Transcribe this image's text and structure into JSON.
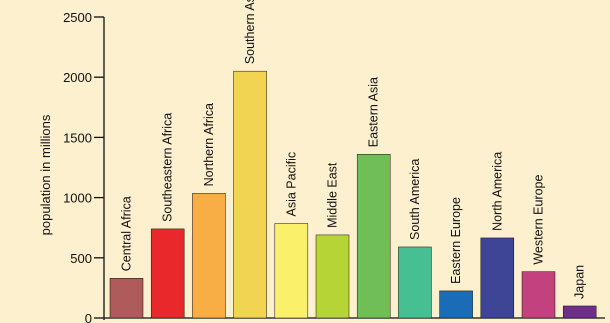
{
  "chart_data": {
    "type": "bar",
    "title": "",
    "xlabel": "",
    "ylabel": "population in millions",
    "ylim": [
      0,
      2500
    ],
    "yticks": [
      "0",
      "500",
      "1000",
      "1500",
      "2000",
      "2500"
    ],
    "grid": false,
    "categories": [
      "Central Africa",
      "Southeastern Africa",
      "Northern Africa",
      "Southern Asia",
      "Asia Pacific",
      "Middle East",
      "Eastern Asia",
      "South America",
      "Eastern Europe",
      "North America",
      "Western Europe",
      "Japan"
    ],
    "values": [
      330,
      740,
      1035,
      2050,
      785,
      690,
      1360,
      590,
      225,
      665,
      385,
      100
    ],
    "colors": [
      "#b05b5b",
      "#e8282a",
      "#f9ad45",
      "#f3d452",
      "#faf06a",
      "#b7d436",
      "#6fbf56",
      "#46c093",
      "#1a6cb6",
      "#3e4596",
      "#c2417e",
      "#6f2e8b"
    ]
  }
}
